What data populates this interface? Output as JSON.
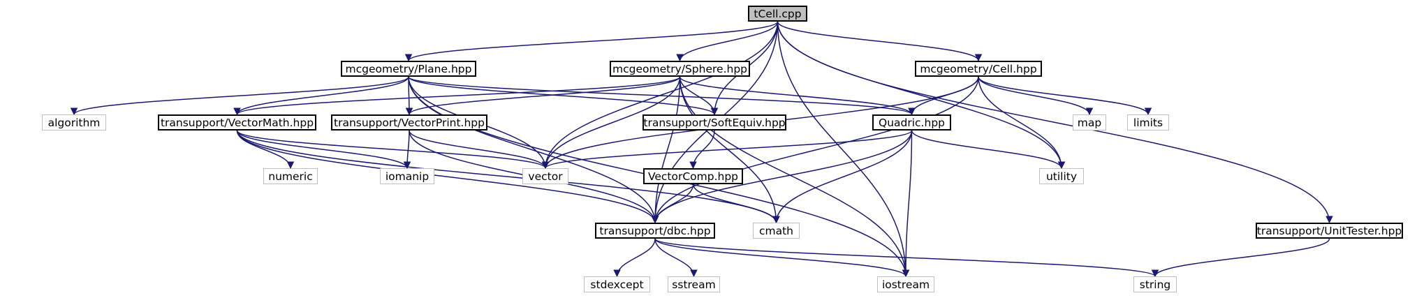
{
  "diagram": {
    "colors": {
      "edge": "#191970",
      "root_fill": "#bfbfbf",
      "system_border": "#bfbfbf",
      "local_border": "#000000"
    },
    "nodes": [
      {
        "id": "tcell",
        "label": "tCell.cpp",
        "kind": "root"
      },
      {
        "id": "plane",
        "label": "mcgeometry/Plane.hpp",
        "kind": "local"
      },
      {
        "id": "sphere",
        "label": "mcgeometry/Sphere.hpp",
        "kind": "local"
      },
      {
        "id": "cell",
        "label": "mcgeometry/Cell.hpp",
        "kind": "local"
      },
      {
        "id": "algorithm",
        "label": "algorithm",
        "kind": "system"
      },
      {
        "id": "vectormath",
        "label": "transupport/VectorMath.hpp",
        "kind": "local"
      },
      {
        "id": "vectorprint",
        "label": "transupport/VectorPrint.hpp",
        "kind": "local"
      },
      {
        "id": "softequiv",
        "label": "transupport/SoftEquiv.hpp",
        "kind": "local"
      },
      {
        "id": "quadric",
        "label": "Quadric.hpp",
        "kind": "local"
      },
      {
        "id": "map",
        "label": "map",
        "kind": "system"
      },
      {
        "id": "limits",
        "label": "limits",
        "kind": "system"
      },
      {
        "id": "numeric",
        "label": "numeric",
        "kind": "system"
      },
      {
        "id": "iomanip",
        "label": "iomanip",
        "kind": "system"
      },
      {
        "id": "vector",
        "label": "vector",
        "kind": "system"
      },
      {
        "id": "utility",
        "label": "utility",
        "kind": "system"
      },
      {
        "id": "vectorcomp",
        "label": "VectorComp.hpp",
        "kind": "local"
      },
      {
        "id": "dbc",
        "label": "transupport/dbc.hpp",
        "kind": "local"
      },
      {
        "id": "cmath",
        "label": "cmath",
        "kind": "system"
      },
      {
        "id": "unittester",
        "label": "transupport/UnitTester.hpp",
        "kind": "local"
      },
      {
        "id": "stdexcept",
        "label": "stdexcept",
        "kind": "system"
      },
      {
        "id": "sstream",
        "label": "sstream",
        "kind": "system"
      },
      {
        "id": "iostream",
        "label": "iostream",
        "kind": "system"
      },
      {
        "id": "string",
        "label": "string",
        "kind": "system"
      }
    ],
    "edges": [
      [
        "tcell",
        "plane"
      ],
      [
        "tcell",
        "sphere"
      ],
      [
        "tcell",
        "cell"
      ],
      [
        "tcell",
        "vector"
      ],
      [
        "tcell",
        "softequiv"
      ],
      [
        "tcell",
        "dbc"
      ],
      [
        "tcell",
        "utility"
      ],
      [
        "tcell",
        "iostream"
      ],
      [
        "tcell",
        "unittester"
      ],
      [
        "plane",
        "algorithm"
      ],
      [
        "plane",
        "vectormath"
      ],
      [
        "plane",
        "vectorprint"
      ],
      [
        "plane",
        "vector"
      ],
      [
        "plane",
        "softequiv"
      ],
      [
        "plane",
        "quadric"
      ],
      [
        "plane",
        "dbc"
      ],
      [
        "plane",
        "iostream"
      ],
      [
        "sphere",
        "vectormath"
      ],
      [
        "sphere",
        "vectorprint"
      ],
      [
        "sphere",
        "vector"
      ],
      [
        "sphere",
        "softequiv"
      ],
      [
        "sphere",
        "quadric"
      ],
      [
        "sphere",
        "dbc"
      ],
      [
        "sphere",
        "cmath"
      ],
      [
        "sphere",
        "iostream"
      ],
      [
        "cell",
        "quadric"
      ],
      [
        "cell",
        "vector"
      ],
      [
        "cell",
        "dbc"
      ],
      [
        "cell",
        "utility"
      ],
      [
        "cell",
        "map"
      ],
      [
        "cell",
        "limits"
      ],
      [
        "vectormath",
        "numeric"
      ],
      [
        "vectormath",
        "iomanip"
      ],
      [
        "vectormath",
        "vector"
      ],
      [
        "vectormath",
        "dbc"
      ],
      [
        "vectormath",
        "cmath"
      ],
      [
        "vectorprint",
        "iomanip"
      ],
      [
        "vectorprint",
        "vector"
      ],
      [
        "vectorprint",
        "dbc"
      ],
      [
        "softequiv",
        "vectorcomp"
      ],
      [
        "quadric",
        "vector"
      ],
      [
        "quadric",
        "utility"
      ],
      [
        "quadric",
        "dbc"
      ],
      [
        "quadric",
        "cmath"
      ],
      [
        "quadric",
        "iostream"
      ],
      [
        "vectorcomp",
        "dbc"
      ],
      [
        "vectorcomp",
        "cmath"
      ],
      [
        "dbc",
        "stdexcept"
      ],
      [
        "dbc",
        "sstream"
      ],
      [
        "dbc",
        "iostream"
      ],
      [
        "dbc",
        "string"
      ],
      [
        "unittester",
        "string"
      ]
    ]
  }
}
